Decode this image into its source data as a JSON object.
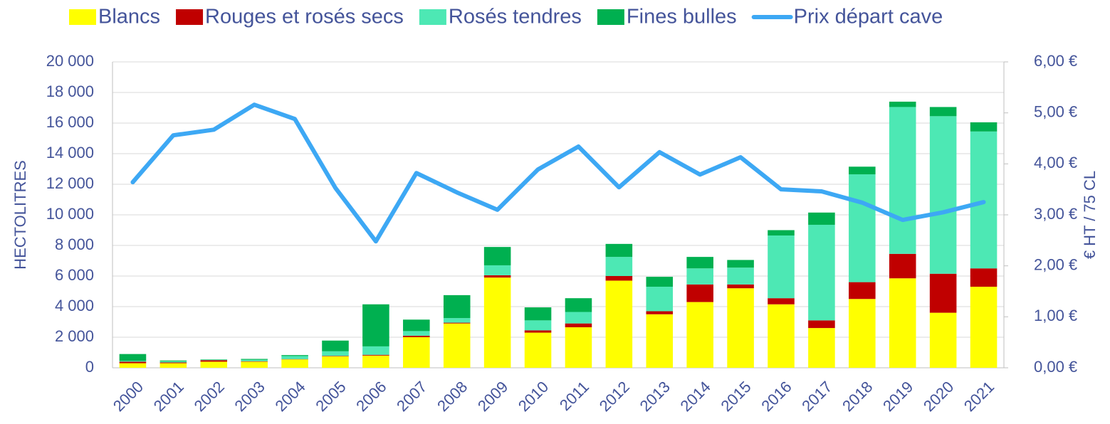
{
  "chart_data": {
    "type": "bar",
    "stacked": true,
    "categories": [
      "2000",
      "2001",
      "2002",
      "2003",
      "2004",
      "2005",
      "2006",
      "2007",
      "2008",
      "2009",
      "2010",
      "2011",
      "2012",
      "2013",
      "2014",
      "2015",
      "2016",
      "2017",
      "2018",
      "2019",
      "2020",
      "2021"
    ],
    "ylabel": "HECTOLITRES",
    "y2label": "€ HT / 75 CL",
    "ylim": [
      0,
      20000
    ],
    "yticks": [
      {
        "value": 0,
        "label": "0"
      },
      {
        "value": 2000,
        "label": "2 000"
      },
      {
        "value": 4000,
        "label": "4 000"
      },
      {
        "value": 6000,
        "label": "6 000"
      },
      {
        "value": 8000,
        "label": "8 000"
      },
      {
        "value": 10000,
        "label": "10 000"
      },
      {
        "value": 12000,
        "label": "12 000"
      },
      {
        "value": 14000,
        "label": "14 000"
      },
      {
        "value": 16000,
        "label": "16 000"
      },
      {
        "value": 18000,
        "label": "18 000"
      },
      {
        "value": 20000,
        "label": "20 000"
      }
    ],
    "y2lim": [
      0,
      6
    ],
    "y2ticks": [
      {
        "value": 0,
        "label": "0,00 €"
      },
      {
        "value": 1,
        "label": "1,00 €"
      },
      {
        "value": 2,
        "label": "2,00 €"
      },
      {
        "value": 3,
        "label": "3,00 €"
      },
      {
        "value": 4,
        "label": "4,00 €"
      },
      {
        "value": 5,
        "label": "5,00 €"
      },
      {
        "value": 6,
        "label": "6,00 €"
      }
    ],
    "grid": true,
    "legend": "top",
    "series": [
      {
        "name": "Blancs",
        "color": "#ffff00",
        "values": [
          300,
          300,
          400,
          400,
          550,
          750,
          800,
          2000,
          2900,
          5900,
          2300,
          2650,
          5700,
          3500,
          4300,
          5200,
          4150,
          2600,
          4500,
          5850,
          3600,
          5300
        ]
      },
      {
        "name": "Rouges et rosés secs",
        "color": "#c00000",
        "values": [
          100,
          50,
          100,
          30,
          20,
          30,
          50,
          100,
          50,
          150,
          150,
          250,
          300,
          200,
          1150,
          250,
          400,
          500,
          1100,
          1600,
          2550,
          1200
        ]
      },
      {
        "name": "Rosés tendres",
        "color": "#4de8b4",
        "values": [
          50,
          80,
          30,
          100,
          200,
          300,
          550,
          300,
          300,
          650,
          650,
          750,
          1250,
          1600,
          1050,
          1100,
          4100,
          6250,
          7050,
          9600,
          10300,
          8950
        ]
      },
      {
        "name": "Fines bulles",
        "color": "#00b050",
        "values": [
          450,
          50,
          20,
          50,
          60,
          700,
          2750,
          750,
          1500,
          1200,
          850,
          900,
          850,
          650,
          750,
          500,
          350,
          800,
          500,
          350,
          600,
          600
        ]
      },
      {
        "name": "Prix départ cave",
        "type": "line",
        "axis": "y2",
        "color": "#3da8f4",
        "values": [
          3.64,
          4.56,
          4.67,
          5.16,
          4.88,
          3.53,
          2.48,
          3.82,
          3.44,
          3.1,
          3.89,
          4.34,
          3.54,
          4.23,
          3.79,
          4.13,
          3.5,
          3.46,
          3.24,
          2.9,
          3.05,
          3.25
        ]
      }
    ]
  }
}
